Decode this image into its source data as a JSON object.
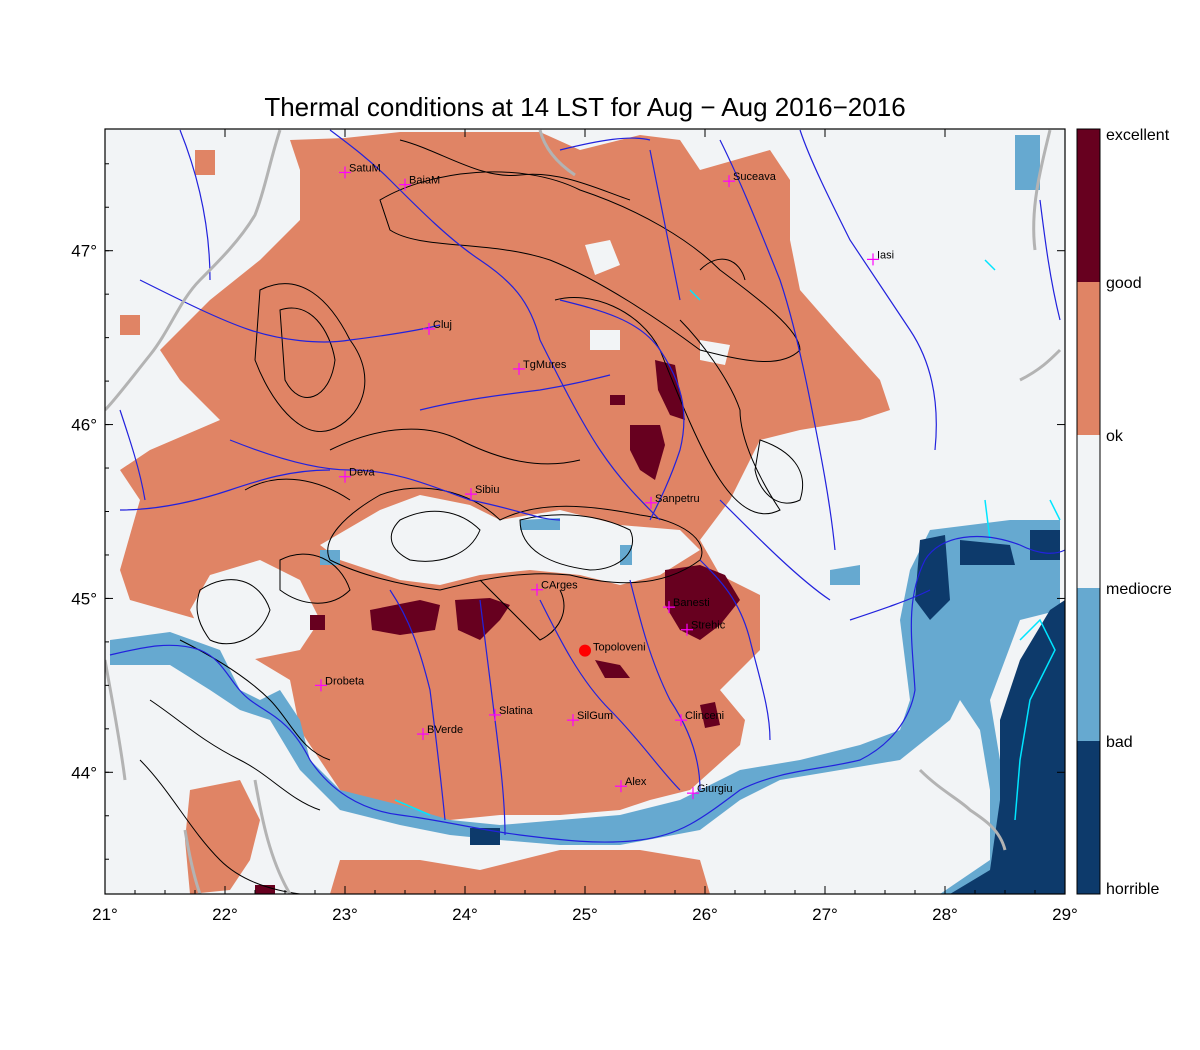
{
  "title": "Thermal conditions at 14 LST for Aug − Aug  2016−2016",
  "colors": {
    "excellent": "#67001f",
    "good": "#e08465",
    "ok": "#f2f4f6",
    "mediocre": "#66a9d0",
    "bad": "#0d3a6b",
    "rivers": "#2222dd",
    "borders": "#b3b3b3",
    "contours": "#000000",
    "city_marker": "#ff00ff",
    "highlight_marker": "#ff0000",
    "lakes": "#00e5ff"
  },
  "map": {
    "lon_range": [
      21,
      29
    ],
    "lat_range": [
      43.3,
      47.7
    ],
    "lon_ticks": [
      "21°",
      "22°",
      "23°",
      "24°",
      "25°",
      "26°",
      "27°",
      "28°",
      "29°"
    ],
    "lat_ticks": [
      "44°",
      "45°",
      "46°",
      "47°"
    ],
    "cities": [
      {
        "name": "SatuM",
        "lon": 23.0,
        "lat": 47.45
      },
      {
        "name": "BaiaM",
        "lon": 23.5,
        "lat": 47.38
      },
      {
        "name": "Suceava",
        "lon": 26.2,
        "lat": 47.4
      },
      {
        "name": "Iasi",
        "lon": 27.4,
        "lat": 46.95
      },
      {
        "name": "Cluj",
        "lon": 23.7,
        "lat": 46.55
      },
      {
        "name": "TgMures",
        "lon": 24.45,
        "lat": 46.32
      },
      {
        "name": "Deva",
        "lon": 23.0,
        "lat": 45.7
      },
      {
        "name": "Sibiu",
        "lon": 24.05,
        "lat": 45.6
      },
      {
        "name": "Sanpetru",
        "lon": 25.55,
        "lat": 45.55
      },
      {
        "name": "CArges",
        "lon": 24.6,
        "lat": 45.05
      },
      {
        "name": "Banesti",
        "lon": 25.7,
        "lat": 44.95
      },
      {
        "name": "Strehic",
        "lon": 25.85,
        "lat": 44.82
      },
      {
        "name": "Drobeta",
        "lon": 22.8,
        "lat": 44.5
      },
      {
        "name": "Slatina",
        "lon": 24.25,
        "lat": 44.33
      },
      {
        "name": "SilGum",
        "lon": 24.9,
        "lat": 44.3
      },
      {
        "name": "Clinceni",
        "lon": 25.8,
        "lat": 44.3
      },
      {
        "name": "BVerde",
        "lon": 23.65,
        "lat": 44.22
      },
      {
        "name": "Alex",
        "lon": 25.3,
        "lat": 43.92
      },
      {
        "name": "Giurgiu",
        "lon": 25.9,
        "lat": 43.88
      }
    ],
    "highlight": {
      "name": "Topoloveni",
      "lon": 25.0,
      "lat": 44.7
    }
  },
  "colorbar": {
    "labels": [
      "excellent",
      "good",
      "ok",
      "mediocre",
      "bad",
      "horrible"
    ]
  }
}
